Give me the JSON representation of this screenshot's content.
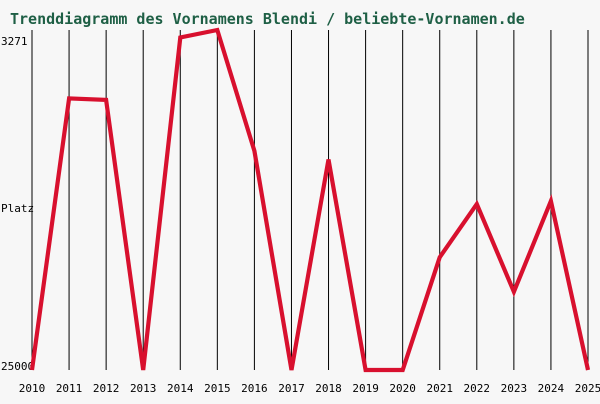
{
  "chart_data": {
    "type": "line",
    "title": "Trenddiagramm des Vornamens Blendi / beliebte-Vornamen.de",
    "ylabel": "Platz",
    "y_axis": {
      "top_label": "3271",
      "bottom_label": "25000",
      "inverted": true
    },
    "x": [
      "2010",
      "2011",
      "2012",
      "2013",
      "2014",
      "2015",
      "2016",
      "2017",
      "2018",
      "2019",
      "2020",
      "2021",
      "2022",
      "2023",
      "2024",
      "2025"
    ],
    "ylim": [
      25000,
      3271
    ],
    "series": [
      {
        "values": [
          25000,
          7640,
          7740,
          25000,
          3750,
          3271,
          11000,
          25000,
          11550,
          25000,
          25000,
          17800,
          14400,
          20000,
          14200,
          25000
        ],
        "color": "#d8102e"
      }
    ],
    "grid": {
      "vertical_lines": true,
      "horizontal_lines": false
    },
    "legend": "none",
    "colors": {
      "background": "#f7f7f7",
      "grid": "#000000",
      "title": "#1e5f45",
      "axis_text": "#000000"
    }
  }
}
